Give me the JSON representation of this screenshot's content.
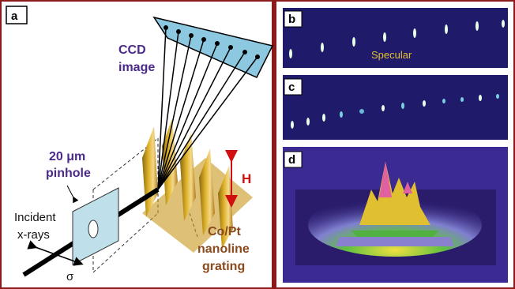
{
  "panels": {
    "a": "a",
    "b": "b",
    "c": "c",
    "d": "d"
  },
  "ccd_label": [
    "CCD",
    "image"
  ],
  "pinhole_label": [
    "20 μm",
    "pinhole"
  ],
  "incident_label": [
    "Incident",
    "x-rays"
  ],
  "polarization": "σ",
  "height_label": "H",
  "grating_label": [
    "Co/Pt",
    "nanoline",
    "grating"
  ],
  "specular_label": "Specular"
}
